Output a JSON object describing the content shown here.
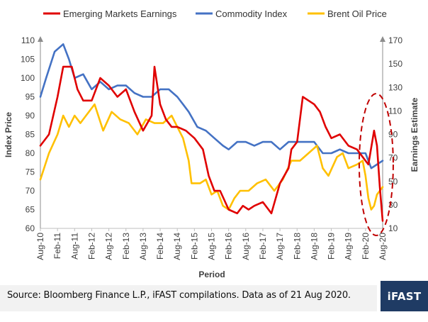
{
  "chart_data": {
    "type": "line",
    "xlabel": "Period",
    "ylabel": "Index Price",
    "y2label": "Earnings Estimate",
    "ylim": [
      60,
      110
    ],
    "y2lim": [
      10,
      170
    ],
    "x_range": [
      "Aug-10",
      "Aug-20"
    ],
    "x_ticks": [
      "Aug-10",
      "Feb-11",
      "Aug-11",
      "Feb-12",
      "Aug-12",
      "Feb-13",
      "Aug-13",
      "Feb-14",
      "Aug-14",
      "Feb-15",
      "Aug-15",
      "Feb-16",
      "Aug-16",
      "Feb-17",
      "Aug-17",
      "Feb-18",
      "Aug-18",
      "Feb-19",
      "Aug-19",
      "Feb-20",
      "Aug-20"
    ],
    "y_ticks": [
      60,
      65,
      70,
      75,
      80,
      85,
      90,
      95,
      100,
      105,
      110
    ],
    "y2_ticks": [
      10,
      30,
      50,
      70,
      90,
      110,
      130,
      150,
      170
    ],
    "legend_position": "top",
    "annotation": "dashed red ellipse highlighting Feb-20 to Aug-20",
    "series": [
      {
        "name": "Emerging Markets Earnings",
        "color": "#e00000",
        "axis": "left",
        "x": [
          "2010-08",
          "2010-11",
          "2011-02",
          "2011-04",
          "2011-07",
          "2011-09",
          "2011-11",
          "2012-02",
          "2012-05",
          "2012-08",
          "2012-11",
          "2013-02",
          "2013-05",
          "2013-08",
          "2013-11",
          "2013-12",
          "2014-02",
          "2014-04",
          "2014-06",
          "2014-08",
          "2014-11",
          "2015-02",
          "2015-05",
          "2015-07",
          "2015-09",
          "2015-11",
          "2016-02",
          "2016-05",
          "2016-07",
          "2016-09",
          "2016-11",
          "2017-02",
          "2017-05",
          "2017-08",
          "2017-11",
          "2017-12",
          "2018-02",
          "2018-04",
          "2018-06",
          "2018-08",
          "2018-10",
          "2018-12",
          "2019-02",
          "2019-05",
          "2019-08",
          "2019-11",
          "2020-01",
          "2020-02",
          "2020-03",
          "2020-05",
          "2020-06",
          "2020-07",
          "2020-08"
        ],
        "values": [
          82,
          85,
          95,
          103,
          103,
          97,
          94,
          94,
          100,
          98,
          95,
          97,
          91,
          86,
          90,
          103,
          93,
          89,
          87,
          87,
          86,
          84,
          81,
          74,
          70,
          70,
          65,
          64,
          66,
          65,
          66,
          67,
          64,
          72,
          76,
          81,
          83,
          95,
          94,
          93,
          91,
          87,
          84,
          85,
          82,
          81,
          79,
          78,
          77,
          86,
          82,
          71,
          62
        ]
      },
      {
        "name": "Commodity Index",
        "color": "#4472c4",
        "axis": "left",
        "x": [
          "2010-08",
          "2010-10",
          "2011-01",
          "2011-04",
          "2011-06",
          "2011-08",
          "2011-11",
          "2012-02",
          "2012-05",
          "2012-08",
          "2012-11",
          "2013-02",
          "2013-05",
          "2013-08",
          "2013-11",
          "2014-02",
          "2014-05",
          "2014-08",
          "2014-10",
          "2014-12",
          "2015-03",
          "2015-06",
          "2015-09",
          "2015-12",
          "2016-02",
          "2016-05",
          "2016-08",
          "2016-11",
          "2017-02",
          "2017-05",
          "2017-08",
          "2017-11",
          "2018-02",
          "2018-05",
          "2018-08",
          "2018-11",
          "2019-02",
          "2019-05",
          "2019-08",
          "2019-11",
          "2020-02",
          "2020-04",
          "2020-06",
          "2020-08"
        ],
        "values": [
          95,
          100,
          107,
          109,
          105,
          100,
          101,
          97,
          99,
          97,
          98,
          98,
          96,
          95,
          95,
          97,
          97,
          95,
          93,
          91,
          87,
          86,
          84,
          82,
          81,
          83,
          83,
          82,
          83,
          83,
          81,
          83,
          83,
          83,
          83,
          80,
          80,
          81,
          80,
          80,
          80,
          76,
          77,
          78
        ]
      },
      {
        "name": "Brent Oil Price",
        "color": "#ffc000",
        "axis": "left",
        "x": [
          "2010-08",
          "2010-11",
          "2011-02",
          "2011-04",
          "2011-06",
          "2011-08",
          "2011-10",
          "2011-12",
          "2012-03",
          "2012-06",
          "2012-09",
          "2012-12",
          "2013-03",
          "2013-06",
          "2013-09",
          "2013-12",
          "2014-03",
          "2014-06",
          "2014-08",
          "2014-10",
          "2014-12",
          "2015-01",
          "2015-04",
          "2015-06",
          "2015-08",
          "2015-10",
          "2015-12",
          "2016-02",
          "2016-04",
          "2016-06",
          "2016-09",
          "2016-12",
          "2017-03",
          "2017-06",
          "2017-09",
          "2017-12",
          "2018-03",
          "2018-06",
          "2018-09",
          "2018-11",
          "2019-01",
          "2019-04",
          "2019-06",
          "2019-08",
          "2019-11",
          "2020-01",
          "2020-02",
          "2020-03",
          "2020-04",
          "2020-05",
          "2020-06",
          "2020-07",
          "2020-08"
        ],
        "values": [
          73,
          80,
          85,
          90,
          87,
          90,
          88,
          90,
          93,
          86,
          91,
          89,
          88,
          85,
          89,
          88,
          88,
          90,
          87,
          84,
          78,
          72,
          72,
          73,
          69,
          70,
          66,
          65,
          68,
          70,
          70,
          72,
          73,
          70,
          73,
          78,
          78,
          80,
          82,
          76,
          74,
          79,
          80,
          76,
          77,
          78,
          74,
          68,
          65,
          66,
          69,
          70,
          71
        ]
      }
    ]
  },
  "source_text": "Source: Bloomberg Finance L.P., iFAST compilations. Data as of 21 Aug 2020.",
  "logo_text": "iFAST",
  "colors": {
    "emerging": "#e00000",
    "commodity": "#4472c4",
    "brent": "#ffc000",
    "logo_bg": "#1f3b64",
    "footer_bg": "#f2f2f2"
  }
}
